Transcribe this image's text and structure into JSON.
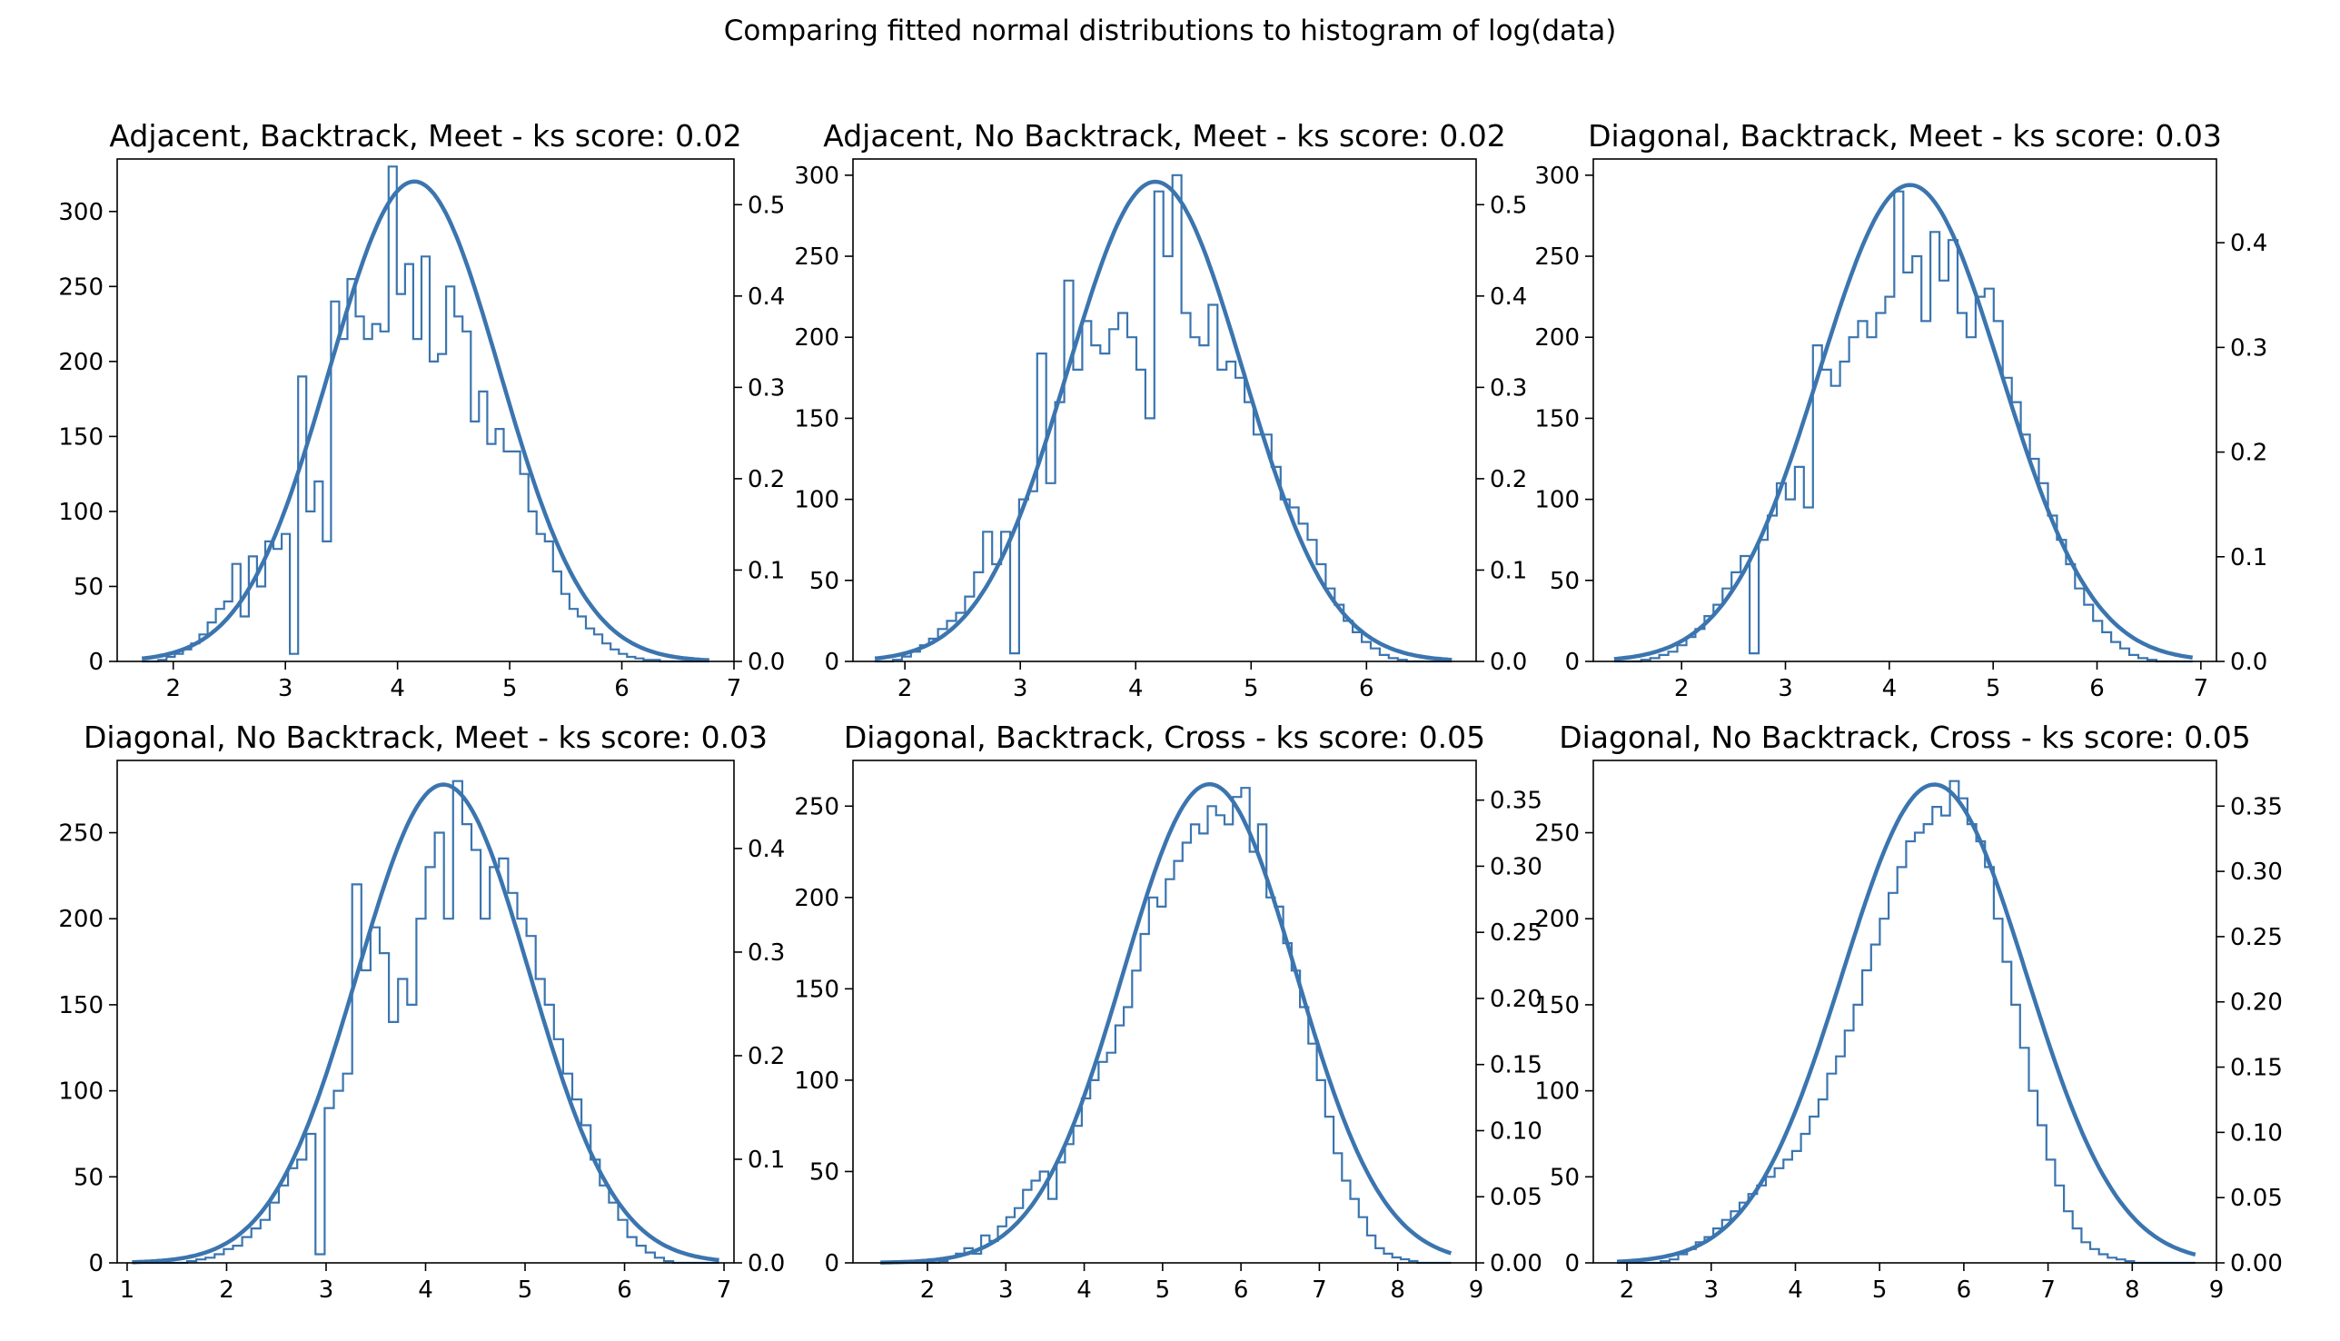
{
  "suptitle": "Comparing fitted normal distributions to histogram of log(data)",
  "colors": {
    "series": "#3b75af",
    "axes": "#000000",
    "background": "#ffffff"
  },
  "chart_data": [
    {
      "type": "histogram",
      "title": "Adjacent, Backtrack, Meet - ks score: 0.02",
      "xlim": [
        1.5,
        7
      ],
      "ylim": [
        0,
        335
      ],
      "y2lim": [
        0,
        0.55
      ],
      "xticks": [
        2,
        3,
        4,
        5,
        6,
        7
      ],
      "yticks": [
        0,
        50,
        100,
        150,
        200,
        250,
        300
      ],
      "y2ticks": [
        "0.0",
        "0.1",
        "0.2",
        "0.3",
        "0.4",
        "0.5"
      ],
      "fit": {
        "mu": 4.15,
        "peak": 320,
        "x_range": [
          1.72,
          6.78
        ]
      },
      "hist": {
        "x_start": 1.72,
        "x_end": 6.78,
        "counts": [
          0,
          0,
          1,
          3,
          5,
          8,
          12,
          18,
          26,
          35,
          40,
          65,
          30,
          70,
          50,
          80,
          75,
          85,
          5,
          190,
          100,
          120,
          80,
          240,
          215,
          255,
          230,
          215,
          225,
          220,
          330,
          245,
          265,
          215,
          270,
          200,
          205,
          250,
          230,
          220,
          160,
          180,
          145,
          155,
          140,
          140,
          125,
          100,
          85,
          80,
          60,
          45,
          35,
          30,
          22,
          18,
          12,
          8,
          5,
          3,
          2,
          1,
          1,
          0,
          0,
          0,
          0,
          0,
          0
        ]
      }
    },
    {
      "type": "histogram",
      "title": "Adjacent, No Backtrack, Meet - ks score: 0.02",
      "xlim": [
        1.55,
        6.95
      ],
      "ylim": [
        0,
        310
      ],
      "y2lim": [
        0,
        0.55
      ],
      "xticks": [
        2,
        3,
        4,
        5,
        6
      ],
      "yticks": [
        0,
        50,
        100,
        150,
        200,
        250,
        300
      ],
      "y2ticks": [
        "0.0",
        "0.1",
        "0.2",
        "0.3",
        "0.4",
        "0.5"
      ],
      "fit": {
        "mu": 4.17,
        "peak": 296,
        "x_range": [
          1.74,
          6.74
        ]
      },
      "hist": {
        "x_start": 1.74,
        "x_end": 6.74,
        "counts": [
          0,
          0,
          1,
          3,
          6,
          10,
          14,
          20,
          25,
          30,
          40,
          55,
          80,
          60,
          80,
          5,
          100,
          105,
          190,
          110,
          160,
          235,
          180,
          210,
          195,
          190,
          205,
          215,
          200,
          180,
          150,
          290,
          250,
          300,
          215,
          200,
          195,
          220,
          180,
          185,
          175,
          160,
          140,
          140,
          120,
          100,
          95,
          85,
          75,
          60,
          45,
          35,
          25,
          18,
          12,
          8,
          4,
          2,
          1,
          0,
          0,
          0,
          0,
          0
        ]
      }
    },
    {
      "type": "histogram",
      "title": "Diagonal, Backtrack, Meet - ks score: 0.03",
      "xlim": [
        1.15,
        7.15
      ],
      "ylim": [
        0,
        310
      ],
      "y2lim": [
        0,
        0.48
      ],
      "xticks": [
        2,
        3,
        4,
        5,
        6,
        7
      ],
      "yticks": [
        0,
        50,
        100,
        150,
        200,
        250,
        300
      ],
      "y2ticks": [
        "0.0",
        "0.1",
        "0.2",
        "0.3",
        "0.4"
      ],
      "fit": {
        "mu": 4.2,
        "peak": 294,
        "x_range": [
          1.35,
          6.92
        ]
      },
      "hist": {
        "x_start": 1.35,
        "x_end": 6.92,
        "counts": [
          0,
          0,
          0,
          1,
          2,
          4,
          6,
          10,
          15,
          20,
          28,
          35,
          45,
          55,
          65,
          5,
          75,
          90,
          110,
          100,
          120,
          95,
          195,
          180,
          170,
          185,
          200,
          210,
          200,
          215,
          225,
          290,
          240,
          250,
          210,
          265,
          235,
          260,
          215,
          200,
          225,
          230,
          210,
          175,
          160,
          140,
          125,
          110,
          90,
          75,
          60,
          45,
          35,
          25,
          18,
          12,
          8,
          4,
          2,
          1,
          0,
          0,
          0,
          0
        ]
      }
    },
    {
      "type": "histogram",
      "title": "Diagonal, No Backtrack, Meet - ks score: 0.03",
      "xlim": [
        0.9,
        7.1
      ],
      "ylim": [
        0,
        292
      ],
      "y2lim": [
        0,
        0.485
      ],
      "xticks": [
        1,
        2,
        3,
        4,
        5,
        6,
        7
      ],
      "yticks": [
        0,
        50,
        100,
        150,
        200,
        250
      ],
      "y2ticks": [
        "0.0",
        "0.1",
        "0.2",
        "0.3",
        "0.4"
      ],
      "fit": {
        "mu": 4.18,
        "peak": 278,
        "x_range": [
          1.05,
          6.95
        ]
      },
      "hist": {
        "x_start": 1.05,
        "x_end": 6.95,
        "counts": [
          0,
          0,
          0,
          0,
          0,
          0,
          1,
          2,
          3,
          5,
          8,
          10,
          15,
          20,
          25,
          35,
          45,
          55,
          60,
          75,
          5,
          90,
          100,
          110,
          220,
          170,
          195,
          180,
          140,
          165,
          150,
          200,
          230,
          250,
          200,
          280,
          255,
          240,
          200,
          230,
          235,
          215,
          200,
          190,
          165,
          150,
          130,
          110,
          95,
          80,
          60,
          45,
          35,
          25,
          15,
          10,
          6,
          3,
          1,
          0,
          0,
          0,
          0,
          0
        ]
      }
    },
    {
      "type": "histogram",
      "title": "Diagonal, Backtrack, Cross - ks score: 0.05",
      "xlim": [
        1.05,
        9.0
      ],
      "ylim": [
        0,
        275
      ],
      "y2lim": [
        0,
        0.38
      ],
      "xticks": [
        2,
        3,
        4,
        5,
        6,
        7,
        8,
        9
      ],
      "yticks": [
        0,
        50,
        100,
        150,
        200,
        250
      ],
      "y2ticks": [
        "0.00",
        "0.05",
        "0.10",
        "0.15",
        "0.20",
        "0.25",
        "0.30",
        "0.35"
      ],
      "fit": {
        "mu": 5.6,
        "peak": 262,
        "x_range": [
          1.4,
          8.68
        ]
      },
      "hist": {
        "x_start": 1.4,
        "x_end": 8.68,
        "counts": [
          0,
          0,
          0,
          0,
          0,
          0,
          0,
          1,
          3,
          5,
          8,
          5,
          15,
          12,
          20,
          25,
          30,
          40,
          45,
          50,
          35,
          55,
          65,
          75,
          90,
          100,
          110,
          115,
          130,
          140,
          160,
          180,
          200,
          195,
          210,
          220,
          230,
          240,
          235,
          250,
          245,
          240,
          255,
          260,
          225,
          240,
          200,
          195,
          175,
          160,
          140,
          120,
          100,
          80,
          60,
          45,
          35,
          25,
          15,
          8,
          5,
          3,
          2,
          1,
          0,
          0,
          0,
          0
        ]
      }
    },
    {
      "type": "histogram",
      "title": "Diagonal, No Backtrack, Cross - ks score: 0.05",
      "xlim": [
        1.6,
        9.0
      ],
      "ylim": [
        0,
        292
      ],
      "y2lim": [
        0,
        0.385
      ],
      "xticks": [
        2,
        3,
        4,
        5,
        6,
        7,
        8,
        9
      ],
      "yticks": [
        0,
        50,
        100,
        150,
        200,
        250
      ],
      "y2ticks": [
        "0.00",
        "0.05",
        "0.10",
        "0.15",
        "0.20",
        "0.25",
        "0.30",
        "0.35"
      ],
      "fit": {
        "mu": 5.65,
        "peak": 278,
        "x_range": [
          1.88,
          8.75
        ]
      },
      "hist": {
        "x_start": 1.88,
        "x_end": 8.75,
        "counts": [
          0,
          0,
          0,
          0,
          0,
          1,
          2,
          5,
          8,
          12,
          15,
          20,
          25,
          30,
          35,
          40,
          45,
          50,
          55,
          60,
          65,
          75,
          85,
          95,
          110,
          120,
          135,
          150,
          170,
          185,
          200,
          215,
          230,
          245,
          250,
          255,
          265,
          260,
          280,
          270,
          255,
          245,
          230,
          200,
          175,
          150,
          125,
          100,
          80,
          60,
          45,
          30,
          20,
          12,
          8,
          5,
          3,
          2,
          1,
          0,
          0,
          0,
          0,
          0,
          0,
          0
        ]
      }
    }
  ]
}
